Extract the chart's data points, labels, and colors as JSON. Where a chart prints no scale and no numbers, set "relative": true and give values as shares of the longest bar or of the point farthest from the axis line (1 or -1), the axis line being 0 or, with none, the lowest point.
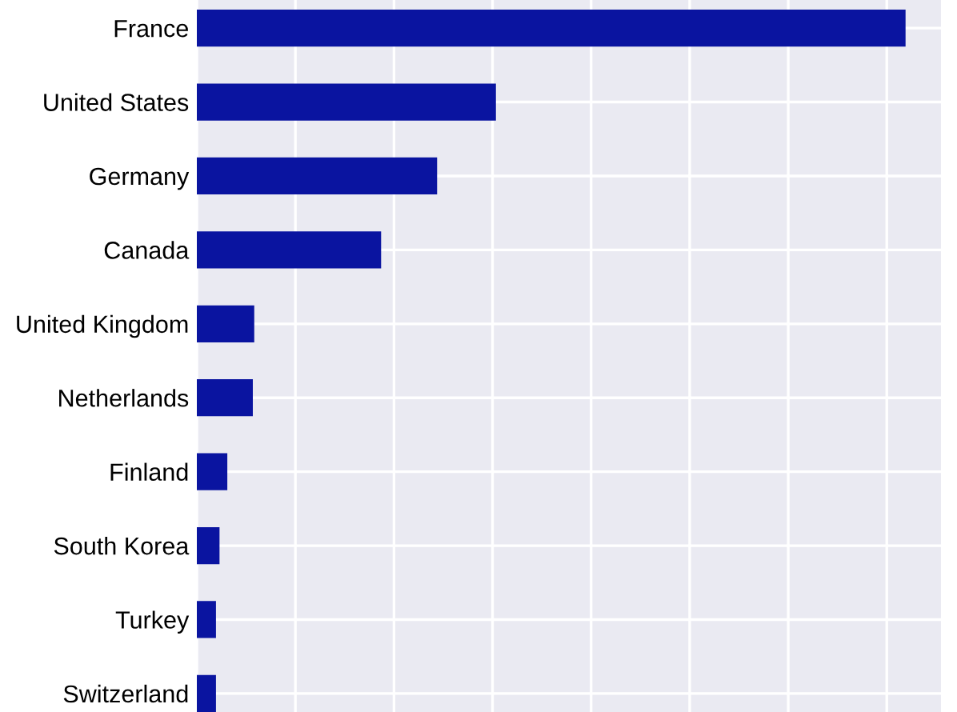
{
  "chart_data": {
    "type": "bar",
    "orientation": "horizontal",
    "relative": true,
    "categories": [
      "France",
      "United States",
      "Germany",
      "Canada",
      "United Kingdom",
      "Netherlands",
      "Finland",
      "South Korea",
      "Turkey",
      "Switzerland"
    ],
    "values": [
      1,
      0.422,
      0.339,
      0.26,
      0.081,
      0.079,
      0.043,
      0.032,
      0.027,
      0.027
    ],
    "color": "#0a14a0",
    "grid": true
  }
}
